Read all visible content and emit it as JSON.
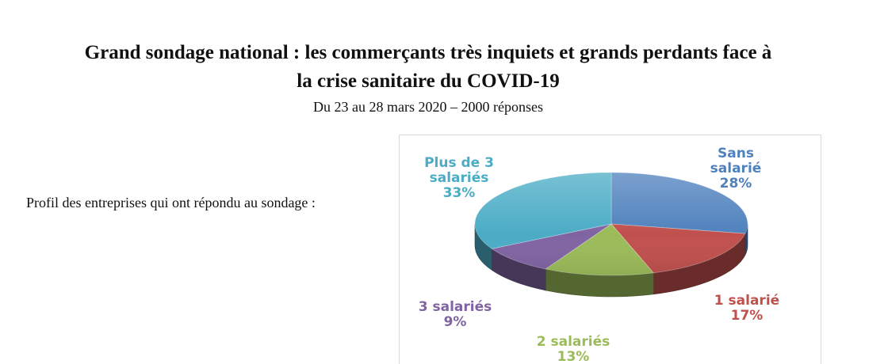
{
  "header": {
    "title_line1": "Grand sondage national : les commerçants très inquiets et grands perdants face à",
    "title_line2": "la crise sanitaire du COVID-19",
    "subtitle": "Du 23 au 28 mars 2020 – 2000 réponses"
  },
  "profile_label": "Profil des entreprises qui ont répondu au sondage :",
  "chart_data": {
    "type": "pie",
    "variant": "3d",
    "categories": [
      "Sans salarié",
      "1 salarié",
      "2 salariés",
      "3 salariés",
      "Plus de 3 salariés"
    ],
    "values": [
      28,
      17,
      13,
      9,
      33
    ],
    "unit": "%",
    "colors": [
      "#4f81bd",
      "#c0504d",
      "#9bbb59",
      "#8064a2",
      "#4bacc6"
    ],
    "labels": [
      {
        "lines": [
          "Sans",
          "salarié",
          "28%"
        ],
        "color": "#4f81bd"
      },
      {
        "lines": [
          "1 salarié",
          "17%"
        ],
        "color": "#c0504d"
      },
      {
        "lines": [
          "2 salariés",
          "13%"
        ],
        "color": "#9bbb59"
      },
      {
        "lines": [
          "3 salariés",
          "9%"
        ],
        "color": "#8064a2"
      },
      {
        "lines": [
          "Plus de 3",
          "salariés",
          "33%"
        ],
        "color": "#4bacc6"
      }
    ],
    "legend": "none"
  }
}
